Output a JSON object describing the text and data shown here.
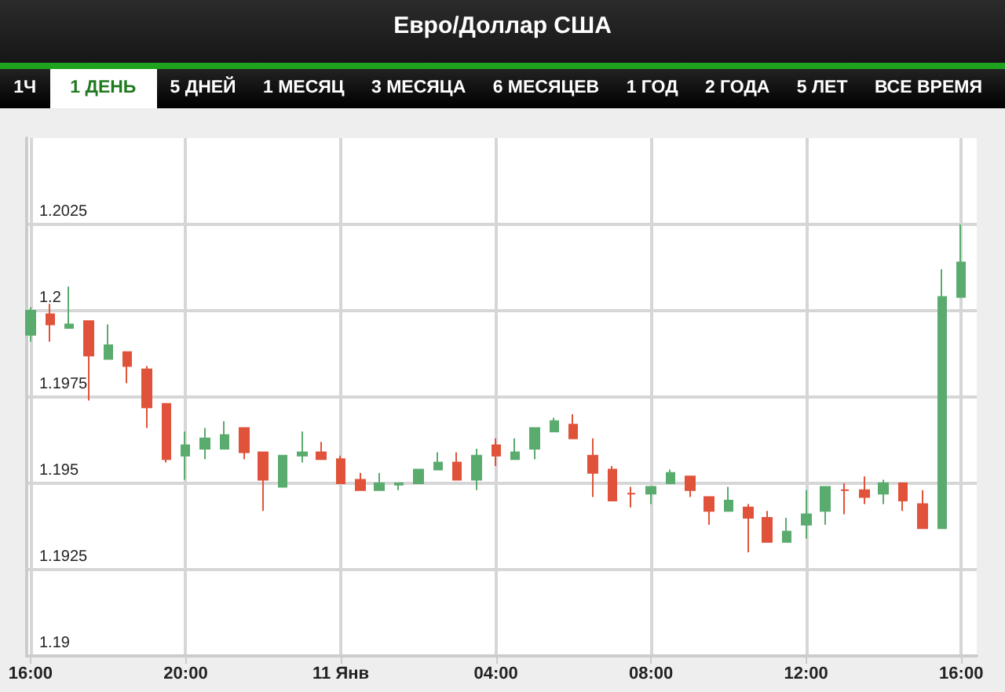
{
  "chart_data": {
    "type": "candlestick",
    "title": "Евро/Доллар США",
    "annotations": [
      "1Ч",
      "1 ДЕНЬ",
      "5 ДНЕЙ",
      "1 МЕСЯЦ",
      "3 МЕСЯЦА",
      "6 МЕСЯЦЕВ",
      "1 ГОД",
      "2 ГОДА",
      "5 ЛЕТ",
      "ВСЕ ВРЕМЯ"
    ],
    "x": [
      "--01-10T16:00",
      "--01-10T16:30",
      "--01-10T17:00",
      "--01-10T17:30",
      "--01-10T18:00",
      "--01-10T18:30",
      "--01-10T19:00",
      "--01-10T19:30",
      "--01-10T20:00",
      "--01-10T20:30",
      "--01-10T21:00",
      "--01-10T21:30",
      "--01-10T22:00",
      "--01-10T22:30",
      "--01-10T23:00",
      "--01-10T23:30",
      "--01-11T00:00",
      "--01-11T00:30",
      "--01-11T01:00",
      "--01-11T01:30",
      "--01-11T02:00",
      "--01-11T02:30",
      "--01-11T03:00",
      "--01-11T03:30",
      "--01-11T04:00",
      "--01-11T04:30",
      "--01-11T05:00",
      "--01-11T05:30",
      "--01-11T06:00",
      "--01-11T06:30",
      "--01-11T07:00",
      "--01-11T07:30",
      "--01-11T08:00",
      "--01-11T08:30",
      "--01-11T09:00",
      "--01-11T09:30",
      "--01-11T10:00",
      "--01-11T10:30",
      "--01-11T11:00",
      "--01-11T11:30",
      "--01-11T12:00",
      "--01-11T12:30",
      "--01-11T13:00",
      "--01-11T13:30",
      "--01-11T14:00",
      "--01-11T14:30",
      "--01-11T15:00",
      "--01-11T15:30",
      "--01-11T16:00"
    ],
    "ohlc": [
      [
        1.1993,
        1.2001,
        1.1991,
        1.2
      ],
      [
        1.1999,
        1.2002,
        1.1991,
        1.1996
      ],
      [
        1.1995,
        1.2007,
        1.1995,
        1.1996
      ],
      [
        1.1997,
        1.1997,
        1.1974,
        1.1987
      ],
      [
        1.1986,
        1.1996,
        1.1986,
        1.199
      ],
      [
        1.1988,
        1.1988,
        1.1979,
        1.1984
      ],
      [
        1.1983,
        1.1984,
        1.1966,
        1.1972
      ],
      [
        1.1973,
        1.1973,
        1.1956,
        1.1957
      ],
      [
        1.1958,
        1.1965,
        1.1951,
        1.1961
      ],
      [
        1.196,
        1.1966,
        1.1957,
        1.1963
      ],
      [
        1.196,
        1.1968,
        1.196,
        1.1964
      ],
      [
        1.1966,
        1.1966,
        1.1957,
        1.1959
      ],
      [
        1.1959,
        1.1959,
        1.1942,
        1.1951
      ],
      [
        1.1949,
        1.1958,
        1.1949,
        1.1958
      ],
      [
        1.1958,
        1.1965,
        1.1956,
        1.1959
      ],
      [
        1.1959,
        1.1962,
        1.1957,
        1.1957
      ],
      [
        1.1957,
        1.1958,
        1.195,
        1.195
      ],
      [
        1.1951,
        1.1953,
        1.1948,
        1.1948
      ],
      [
        1.1948,
        1.1953,
        1.1948,
        1.195
      ],
      [
        1.19496,
        1.195,
        1.1948,
        1.195
      ],
      [
        1.195,
        1.1954,
        1.195,
        1.1954
      ],
      [
        1.1954,
        1.1959,
        1.1954,
        1.1956
      ],
      [
        1.1956,
        1.1959,
        1.1951,
        1.1951
      ],
      [
        1.1951,
        1.196,
        1.1948,
        1.1958
      ],
      [
        1.1961,
        1.1963,
        1.1955,
        1.1958
      ],
      [
        1.1957,
        1.1963,
        1.1957,
        1.1959
      ],
      [
        1.196,
        1.1966,
        1.1957,
        1.1966
      ],
      [
        1.1965,
        1.1969,
        1.1965,
        1.1968
      ],
      [
        1.1967,
        1.197,
        1.1963,
        1.1963
      ],
      [
        1.1958,
        1.1963,
        1.1946,
        1.1953
      ],
      [
        1.1954,
        1.1955,
        1.1945,
        1.1945
      ],
      [
        1.1947,
        1.1949,
        1.1943,
        1.1947
      ],
      [
        1.1947,
        1.1949,
        1.1944,
        1.1949
      ],
      [
        1.195,
        1.1954,
        1.195,
        1.1953
      ],
      [
        1.1952,
        1.1952,
        1.1946,
        1.1948
      ],
      [
        1.1946,
        1.1946,
        1.1938,
        1.1942
      ],
      [
        1.1942,
        1.1949,
        1.1942,
        1.1945
      ],
      [
        1.1943,
        1.1944,
        1.193,
        1.194
      ],
      [
        1.194,
        1.1942,
        1.1933,
        1.1933
      ],
      [
        1.1933,
        1.194,
        1.1933,
        1.1936
      ],
      [
        1.1938,
        1.1948,
        1.1934,
        1.1941
      ],
      [
        1.1942,
        1.1949,
        1.1938,
        1.1949
      ],
      [
        1.1948,
        1.195,
        1.1941,
        1.1948
      ],
      [
        1.1948,
        1.1952,
        1.1944,
        1.1946
      ],
      [
        1.1947,
        1.1951,
        1.1944,
        1.195
      ],
      [
        1.195,
        1.195,
        1.1942,
        1.1945
      ],
      [
        1.1944,
        1.1948,
        1.1937,
        1.1937
      ],
      [
        1.1937,
        1.2012,
        1.1937,
        1.2004
      ],
      [
        1.2004,
        1.2025,
        1.2004,
        1.2014
      ]
    ],
    "colors": [
      "#5aab6e",
      "#e0533a",
      "#5aab6e",
      "#e0533a",
      "#5aab6e",
      "#e0533a",
      "#e0533a",
      "#e0533a",
      "#5aab6e",
      "#5aab6e",
      "#5aab6e",
      "#e0533a",
      "#e0533a",
      "#5aab6e",
      "#5aab6e",
      "#e0533a",
      "#e0533a",
      "#e0533a",
      "#5aab6e",
      "#5aab6e",
      "#5aab6e",
      "#5aab6e",
      "#e0533a",
      "#5aab6e",
      "#e0533a",
      "#5aab6e",
      "#5aab6e",
      "#5aab6e",
      "#e0533a",
      "#e0533a",
      "#e0533a",
      "#e0533a",
      "#5aab6e",
      "#5aab6e",
      "#e0533a",
      "#e0533a",
      "#5aab6e",
      "#e0533a",
      "#e0533a",
      "#5aab6e",
      "#5aab6e",
      "#5aab6e",
      "#e0533a",
      "#e0533a",
      "#5aab6e",
      "#e0533a",
      "#e0533a",
      "#5aab6e",
      "#5aab6e"
    ],
    "xlim": [
      "--01-10T15:54",
      "--01-11T16:24"
    ],
    "xticks": [
      {
        "value": "--01-10T16:00",
        "label": "16:00"
      },
      {
        "value": "--01-10T20:00",
        "label": "20:00"
      },
      {
        "value": "--01-11T00:00",
        "label": "11 Янв"
      },
      {
        "value": "--01-11T04:00",
        "label": "04:00"
      },
      {
        "value": "--01-11T08:00",
        "label": "08:00"
      },
      {
        "value": "--01-11T12:00",
        "label": "12:00"
      },
      {
        "value": "--01-11T16:00",
        "label": "16:00"
      }
    ],
    "ylim": [
      1.19,
      1.205
    ],
    "yticks": [
      1.19,
      1.1925,
      1.195,
      1.1975,
      1.2,
      1.2025
    ],
    "grid": true
  }
}
